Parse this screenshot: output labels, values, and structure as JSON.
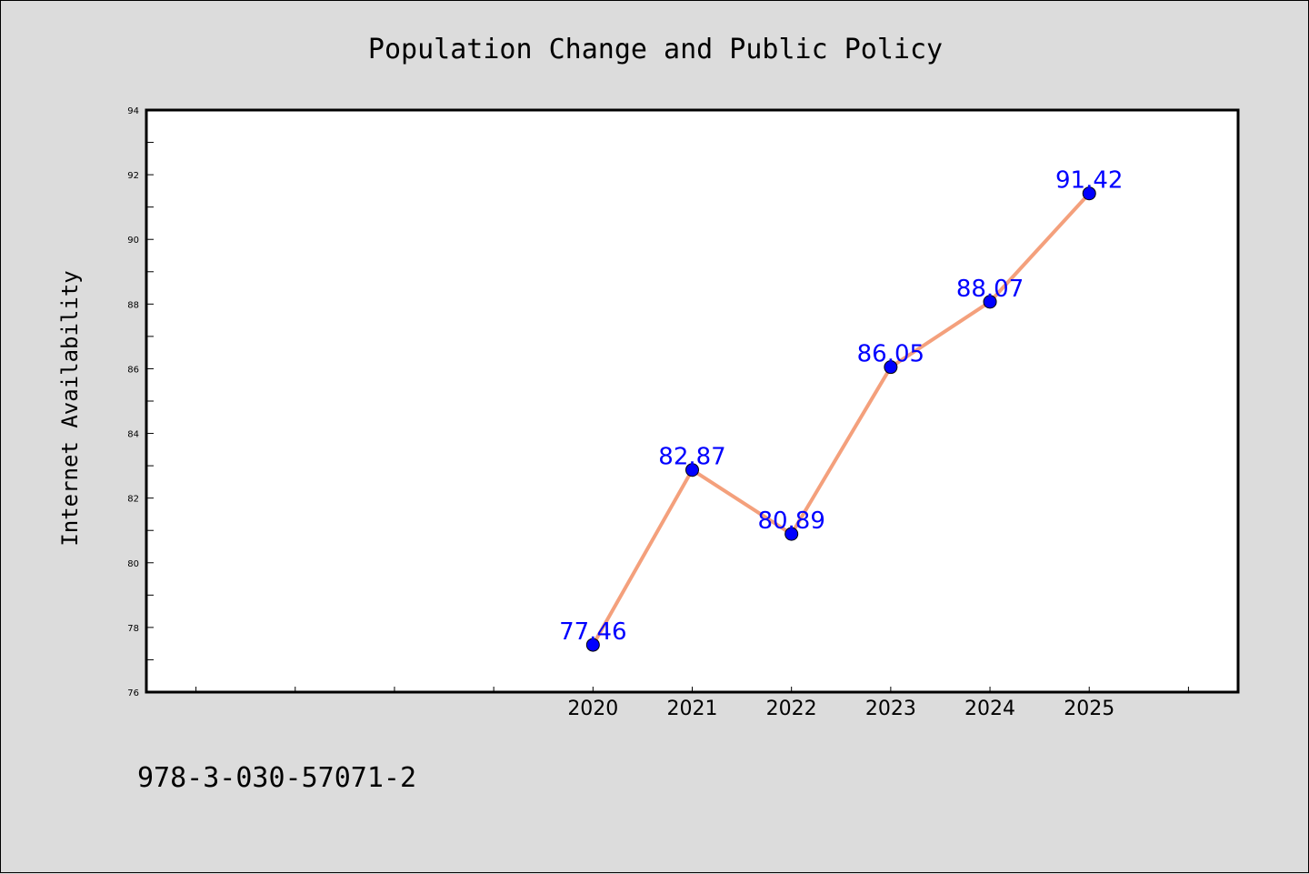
{
  "chart_data": {
    "type": "line",
    "title": "Population Change and Public Policy",
    "xlabel": "",
    "ylabel": "Internet Availability",
    "x": [
      2020,
      2021,
      2022,
      2023,
      2024,
      2025
    ],
    "x_tick_labels": [
      "2020",
      "2021",
      "2022",
      "2023",
      "2024",
      "2025"
    ],
    "xlim": [
      2015.5,
      2026.5
    ],
    "ylim": [
      76,
      94
    ],
    "y_ticks": [
      76,
      78,
      80,
      82,
      84,
      86,
      88,
      90,
      92,
      94
    ],
    "series": [
      {
        "values": [
          77.46,
          82.87,
          80.89,
          86.05,
          88.07,
          91.42
        ],
        "labels": [
          "77.46",
          "82.87",
          "80.89",
          "86.05",
          "88.07",
          "91.42"
        ],
        "line_color": "#f4a07c",
        "marker_color": "#0000ff"
      }
    ],
    "grid": false,
    "legend": "none"
  },
  "footnote": "978-3-030-57071-2",
  "colors": {
    "background": "#dcdcdc",
    "plot_background": "#ffffff",
    "axis": "#000000",
    "line": "#f4a07c",
    "marker": "#0000ff",
    "data_label": "#0000ff"
  }
}
